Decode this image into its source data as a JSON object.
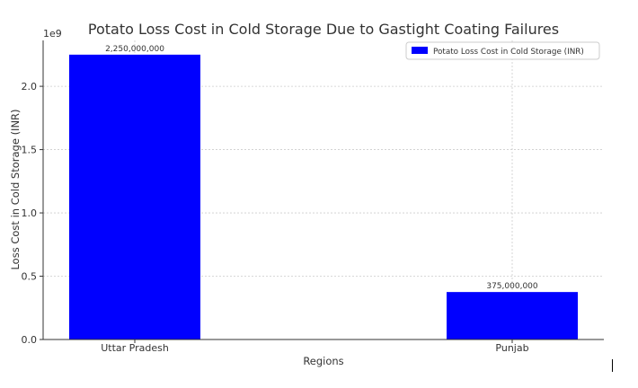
{
  "chart_data": {
    "type": "bar",
    "title": "Potato Loss Cost in Cold Storage Due to Gastight Coating Failures",
    "xlabel": "Regions",
    "ylabel": "Loss Cost in Cold Storage (INR)",
    "y_offset_text": "1e9",
    "categories": [
      "Uttar Pradesh",
      "Punjab"
    ],
    "series": [
      {
        "name": "Potato Loss Cost in Cold Storage (INR)",
        "values": [
          2250000000,
          375000000
        ],
        "data_labels": [
          "2,250,000,000",
          "375,000,000"
        ]
      }
    ],
    "ylim": [
      0,
      2362500000
    ],
    "yticks": [
      0,
      500000000,
      1000000000,
      1500000000,
      2000000000
    ],
    "ytick_labels": [
      "0.0",
      "0.5",
      "1.0",
      "1.5",
      "2.0"
    ],
    "grid": true,
    "legend_position": "top-right",
    "colors": {
      "bar": "#0000ff",
      "grid": "#cccccc",
      "axis": "#333333"
    }
  }
}
